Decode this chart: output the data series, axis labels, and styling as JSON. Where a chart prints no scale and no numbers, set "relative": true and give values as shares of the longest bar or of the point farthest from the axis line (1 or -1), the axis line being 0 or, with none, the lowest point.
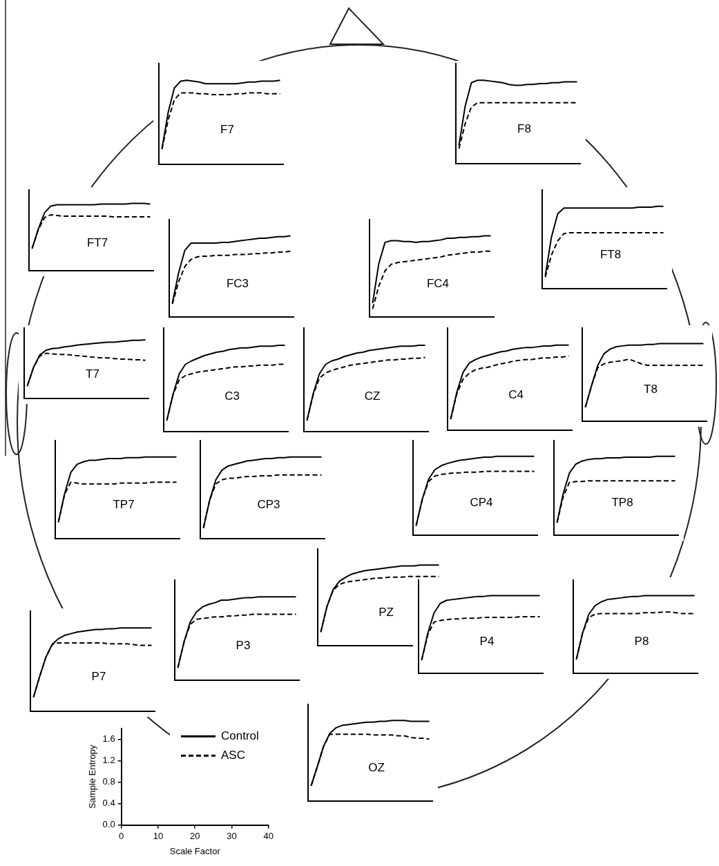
{
  "chart_data": [
    {
      "type": "line",
      "title": "F7",
      "relative": true,
      "categories": [
        null,
        null,
        null,
        null,
        null,
        null,
        null,
        null,
        null,
        null,
        null,
        null,
        null,
        null,
        null,
        null,
        null,
        null,
        null,
        null
      ],
      "series": [
        {
          "color": "#000000",
          "line_style": "solid",
          "values": [
            0.19,
            0.62,
            0.91,
            0.99,
            1.0,
            0.99,
            0.98,
            0.96,
            0.96,
            0.96,
            0.96,
            0.96,
            0.96,
            0.97,
            0.98,
            0.98,
            0.99,
            0.99,
            0.99,
            1.0
          ]
        },
        {
          "color": "#000000",
          "line_style": "dashed",
          "values": [
            0.18,
            0.53,
            0.77,
            0.85,
            0.85,
            0.85,
            0.84,
            0.84,
            0.83,
            0.83,
            0.83,
            0.83,
            0.84,
            0.84,
            0.85,
            0.85,
            0.85,
            0.84,
            0.84,
            0.84
          ]
        }
      ]
    },
    {
      "type": "line",
      "title": "F8",
      "relative": true,
      "categories": [
        null,
        null,
        null,
        null,
        null,
        null,
        null,
        null,
        null,
        null,
        null,
        null,
        null,
        null,
        null,
        null,
        null,
        null,
        null,
        null
      ],
      "series": [
        {
          "color": "#000000",
          "line_style": "solid",
          "values": [
            0.22,
            0.69,
            0.97,
            1.0,
            1.0,
            0.99,
            0.98,
            0.97,
            0.95,
            0.94,
            0.94,
            0.95,
            0.95,
            0.96,
            0.96,
            0.97,
            0.97,
            0.98,
            0.98,
            0.98
          ]
        },
        {
          "color": "#000000",
          "line_style": "dashed",
          "values": [
            0.18,
            0.48,
            0.68,
            0.73,
            0.73,
            0.73,
            0.73,
            0.73,
            0.73,
            0.73,
            0.73,
            0.73,
            0.73,
            0.73,
            0.73,
            0.73,
            0.73,
            0.73,
            0.73,
            0.73
          ]
        }
      ]
    },
    {
      "type": "line",
      "title": "FT7",
      "relative": true,
      "categories": [
        null,
        null,
        null,
        null,
        null,
        null,
        null,
        null,
        null,
        null,
        null,
        null,
        null,
        null,
        null,
        null,
        null,
        null,
        null,
        null
      ],
      "series": [
        {
          "color": "#000000",
          "line_style": "solid",
          "values": [
            0.33,
            0.62,
            0.86,
            0.96,
            0.98,
            0.98,
            0.98,
            0.98,
            0.98,
            0.98,
            0.98,
            0.99,
            0.99,
            0.99,
            0.99,
            0.99,
            1.0,
            1.0,
            1.0,
            0.99
          ]
        },
        {
          "color": "#000000",
          "line_style": "dashed",
          "values": [
            0.33,
            0.61,
            0.79,
            0.83,
            0.82,
            0.81,
            0.81,
            0.81,
            0.81,
            0.81,
            0.81,
            0.81,
            0.81,
            0.8,
            0.8,
            0.8,
            0.8,
            0.8,
            0.8,
            0.8
          ]
        }
      ]
    },
    {
      "type": "line",
      "title": "FT8",
      "relative": true,
      "categories": [
        null,
        null,
        null,
        null,
        null,
        null,
        null,
        null,
        null,
        null,
        null,
        null,
        null,
        null,
        null,
        null,
        null,
        null,
        null,
        null
      ],
      "series": [
        {
          "color": "#000000",
          "line_style": "solid",
          "values": [
            0.16,
            0.63,
            0.91,
            0.98,
            0.98,
            0.98,
            0.98,
            0.98,
            0.98,
            0.98,
            0.98,
            0.98,
            0.98,
            0.98,
            0.98,
            0.99,
            0.99,
            0.99,
            1.0,
            1.0
          ]
        },
        {
          "color": "#000000",
          "line_style": "dashed",
          "values": [
            0.14,
            0.41,
            0.58,
            0.67,
            0.68,
            0.68,
            0.68,
            0.68,
            0.68,
            0.68,
            0.68,
            0.68,
            0.68,
            0.68,
            0.68,
            0.68,
            0.68,
            0.68,
            0.68,
            0.68
          ]
        }
      ]
    },
    {
      "type": "line",
      "title": "FC3",
      "relative": true,
      "categories": [
        null,
        null,
        null,
        null,
        null,
        null,
        null,
        null,
        null,
        null,
        null,
        null,
        null,
        null,
        null,
        null,
        null,
        null,
        null,
        null
      ],
      "series": [
        {
          "color": "#000000",
          "line_style": "solid",
          "values": [
            0.17,
            0.54,
            0.82,
            0.91,
            0.91,
            0.91,
            0.91,
            0.91,
            0.92,
            0.92,
            0.93,
            0.94,
            0.95,
            0.96,
            0.97,
            0.97,
            0.98,
            0.99,
            0.99,
            1.0
          ]
        },
        {
          "color": "#000000",
          "line_style": "dashed",
          "values": [
            0.16,
            0.43,
            0.62,
            0.71,
            0.74,
            0.75,
            0.75,
            0.76,
            0.76,
            0.76,
            0.77,
            0.77,
            0.77,
            0.78,
            0.78,
            0.79,
            0.79,
            0.8,
            0.8,
            0.81
          ]
        }
      ]
    },
    {
      "type": "line",
      "title": "FC4",
      "relative": true,
      "categories": [
        null,
        null,
        null,
        null,
        null,
        null,
        null,
        null,
        null,
        null,
        null,
        null,
        null,
        null,
        null,
        null,
        null,
        null,
        null,
        null
      ],
      "series": [
        {
          "color": "#000000",
          "line_style": "solid",
          "values": [
            0.17,
            0.66,
            0.92,
            0.94,
            0.94,
            0.93,
            0.93,
            0.92,
            0.93,
            0.93,
            0.94,
            0.95,
            0.97,
            0.97,
            0.98,
            0.98,
            0.99,
            0.99,
            1.0,
            1.0
          ]
        },
        {
          "color": "#000000",
          "line_style": "dashed",
          "values": [
            0.1,
            0.38,
            0.57,
            0.65,
            0.67,
            0.68,
            0.69,
            0.7,
            0.71,
            0.72,
            0.73,
            0.74,
            0.76,
            0.77,
            0.78,
            0.79,
            0.8,
            0.8,
            0.81,
            0.81
          ]
        }
      ]
    },
    {
      "type": "line",
      "title": "T7",
      "relative": true,
      "categories": [
        null,
        null,
        null,
        null,
        null,
        null,
        null,
        null,
        null,
        null,
        null,
        null,
        null,
        null,
        null,
        null,
        null,
        null,
        null,
        null
      ],
      "series": [
        {
          "color": "#000000",
          "line_style": "solid",
          "values": [
            0.21,
            0.53,
            0.74,
            0.82,
            0.85,
            0.86,
            0.88,
            0.89,
            0.91,
            0.92,
            0.93,
            0.94,
            0.95,
            0.96,
            0.96,
            0.97,
            0.98,
            0.99,
            0.99,
            1.0
          ]
        },
        {
          "color": "#000000",
          "line_style": "dashed",
          "values": [
            0.21,
            0.53,
            0.72,
            0.77,
            0.76,
            0.75,
            0.75,
            0.74,
            0.73,
            0.72,
            0.71,
            0.7,
            0.69,
            0.69,
            0.68,
            0.67,
            0.67,
            0.66,
            0.66,
            0.65
          ]
        }
      ]
    },
    {
      "type": "line",
      "title": "C3",
      "relative": true,
      "categories": [
        null,
        null,
        null,
        null,
        null,
        null,
        null,
        null,
        null,
        null,
        null,
        null,
        null,
        null,
        null,
        null,
        null,
        null,
        null,
        null
      ],
      "series": [
        {
          "color": "#000000",
          "line_style": "solid",
          "values": [
            0.13,
            0.43,
            0.67,
            0.78,
            0.82,
            0.85,
            0.88,
            0.9,
            0.92,
            0.93,
            0.95,
            0.96,
            0.97,
            0.97,
            0.98,
            0.99,
            0.99,
            0.99,
            1.0,
            1.0
          ]
        },
        {
          "color": "#000000",
          "line_style": "dashed",
          "values": [
            0.13,
            0.43,
            0.6,
            0.65,
            0.67,
            0.69,
            0.7,
            0.71,
            0.72,
            0.73,
            0.74,
            0.75,
            0.75,
            0.76,
            0.76,
            0.77,
            0.77,
            0.77,
            0.78,
            0.78
          ]
        }
      ]
    },
    {
      "type": "line",
      "title": "CZ",
      "relative": true,
      "categories": [
        null,
        null,
        null,
        null,
        null,
        null,
        null,
        null,
        null,
        null,
        null,
        null,
        null,
        null,
        null,
        null,
        null,
        null,
        null,
        null
      ],
      "series": [
        {
          "color": "#000000",
          "line_style": "solid",
          "values": [
            0.13,
            0.44,
            0.67,
            0.78,
            0.82,
            0.84,
            0.87,
            0.89,
            0.91,
            0.92,
            0.94,
            0.95,
            0.96,
            0.97,
            0.98,
            0.99,
            0.99,
            0.99,
            1.0,
            1.0
          ]
        },
        {
          "color": "#000000",
          "line_style": "dashed",
          "values": [
            0.13,
            0.43,
            0.62,
            0.68,
            0.71,
            0.73,
            0.75,
            0.77,
            0.78,
            0.79,
            0.8,
            0.81,
            0.82,
            0.83,
            0.83,
            0.84,
            0.84,
            0.85,
            0.85,
            0.86
          ]
        }
      ]
    },
    {
      "type": "line",
      "title": "C4",
      "relative": true,
      "categories": [
        null,
        null,
        null,
        null,
        null,
        null,
        null,
        null,
        null,
        null,
        null,
        null,
        null,
        null,
        null,
        null,
        null,
        null,
        null,
        null
      ],
      "series": [
        {
          "color": "#000000",
          "line_style": "solid",
          "values": [
            0.13,
            0.45,
            0.68,
            0.79,
            0.83,
            0.86,
            0.88,
            0.9,
            0.92,
            0.93,
            0.95,
            0.96,
            0.97,
            0.97,
            0.98,
            0.99,
            0.99,
            1.0,
            1.0,
            1.0
          ]
        },
        {
          "color": "#000000",
          "line_style": "dashed",
          "values": [
            0.13,
            0.43,
            0.6,
            0.67,
            0.71,
            0.73,
            0.74,
            0.76,
            0.78,
            0.79,
            0.81,
            0.82,
            0.83,
            0.83,
            0.84,
            0.85,
            0.85,
            0.86,
            0.86,
            0.87
          ]
        }
      ]
    },
    {
      "type": "line",
      "title": "T8",
      "relative": true,
      "categories": [
        null,
        null,
        null,
        null,
        null,
        null,
        null,
        null,
        null,
        null,
        null,
        null,
        null,
        null,
        null,
        null,
        null,
        null,
        null,
        null
      ],
      "series": [
        {
          "color": "#000000",
          "line_style": "solid",
          "values": [
            0.18,
            0.46,
            0.72,
            0.87,
            0.93,
            0.96,
            0.97,
            0.98,
            0.98,
            0.98,
            0.99,
            0.99,
            1.0,
            1.0,
            1.0,
            1.0,
            1.0,
            1.0,
            1.0,
            1.0
          ]
        },
        {
          "color": "#000000",
          "line_style": "dashed",
          "values": [
            0.18,
            0.46,
            0.69,
            0.74,
            0.76,
            0.77,
            0.78,
            0.8,
            0.77,
            0.74,
            0.72,
            0.72,
            0.72,
            0.72,
            0.72,
            0.72,
            0.72,
            0.72,
            0.72,
            0.72
          ]
        }
      ]
    },
    {
      "type": "line",
      "title": "TP7",
      "relative": true,
      "categories": [
        null,
        null,
        null,
        null,
        null,
        null,
        null,
        null,
        null,
        null,
        null,
        null,
        null,
        null,
        null,
        null,
        null,
        null,
        null,
        null
      ],
      "series": [
        {
          "color": "#000000",
          "line_style": "solid",
          "values": [
            0.2,
            0.55,
            0.81,
            0.91,
            0.94,
            0.96,
            0.96,
            0.97,
            0.98,
            0.98,
            0.98,
            0.99,
            0.99,
            0.99,
            1.0,
            1.0,
            1.0,
            1.0,
            1.0,
            1.0
          ]
        },
        {
          "color": "#000000",
          "line_style": "dashed",
          "values": [
            0.2,
            0.54,
            0.69,
            0.68,
            0.67,
            0.67,
            0.67,
            0.67,
            0.67,
            0.67,
            0.68,
            0.68,
            0.68,
            0.68,
            0.68,
            0.69,
            0.69,
            0.69,
            0.69,
            0.69
          ]
        }
      ]
    },
    {
      "type": "line",
      "title": "CP3",
      "relative": true,
      "categories": [
        null,
        null,
        null,
        null,
        null,
        null,
        null,
        null,
        null,
        null,
        null,
        null,
        null,
        null,
        null,
        null,
        null,
        null,
        null,
        null
      ],
      "series": [
        {
          "color": "#000000",
          "line_style": "solid",
          "values": [
            0.13,
            0.47,
            0.72,
            0.84,
            0.89,
            0.91,
            0.93,
            0.95,
            0.96,
            0.97,
            0.98,
            0.98,
            0.99,
            0.99,
            1.0,
            1.0,
            1.0,
            1.0,
            1.0,
            1.0
          ]
        },
        {
          "color": "#000000",
          "line_style": "dashed",
          "values": [
            0.13,
            0.47,
            0.67,
            0.72,
            0.74,
            0.74,
            0.75,
            0.76,
            0.76,
            0.77,
            0.77,
            0.77,
            0.78,
            0.78,
            0.78,
            0.78,
            0.78,
            0.78,
            0.78,
            0.78
          ]
        }
      ]
    },
    {
      "type": "line",
      "title": "CP4",
      "relative": true,
      "categories": [
        null,
        null,
        null,
        null,
        null,
        null,
        null,
        null,
        null,
        null,
        null,
        null,
        null,
        null,
        null,
        null,
        null,
        null,
        null,
        null
      ],
      "series": [
        {
          "color": "#000000",
          "line_style": "solid",
          "values": [
            0.12,
            0.46,
            0.71,
            0.83,
            0.88,
            0.91,
            0.93,
            0.95,
            0.96,
            0.97,
            0.98,
            0.99,
            0.99,
            1.0,
            1.0,
            1.0,
            1.0,
            1.0,
            1.0,
            1.0
          ]
        },
        {
          "color": "#000000",
          "line_style": "dashed",
          "values": [
            0.12,
            0.46,
            0.68,
            0.75,
            0.77,
            0.78,
            0.79,
            0.79,
            0.8,
            0.8,
            0.8,
            0.81,
            0.81,
            0.81,
            0.81,
            0.81,
            0.81,
            0.81,
            0.81,
            0.81
          ]
        }
      ]
    },
    {
      "type": "line",
      "title": "TP8",
      "relative": true,
      "categories": [
        null,
        null,
        null,
        null,
        null,
        null,
        null,
        null,
        null,
        null,
        null,
        null,
        null,
        null,
        null,
        null,
        null,
        null,
        null,
        null
      ],
      "series": [
        {
          "color": "#000000",
          "line_style": "solid",
          "values": [
            0.16,
            0.53,
            0.79,
            0.9,
            0.94,
            0.96,
            0.97,
            0.97,
            0.98,
            0.98,
            0.98,
            0.99,
            0.99,
            0.99,
            0.99,
            0.99,
            1.0,
            1.0,
            1.0,
            1.0
          ]
        },
        {
          "color": "#000000",
          "line_style": "dashed",
          "values": [
            0.16,
            0.49,
            0.67,
            0.68,
            0.68,
            0.69,
            0.69,
            0.69,
            0.69,
            0.69,
            0.69,
            0.69,
            0.69,
            0.69,
            0.69,
            0.69,
            0.69,
            0.69,
            0.69,
            0.69
          ]
        }
      ]
    },
    {
      "type": "line",
      "title": "PZ",
      "relative": true,
      "categories": [
        null,
        null,
        null,
        null,
        null,
        null,
        null,
        null,
        null,
        null,
        null,
        null,
        null,
        null,
        null,
        null,
        null,
        null,
        null,
        null
      ],
      "series": [
        {
          "color": "#000000",
          "line_style": "solid",
          "values": [
            0.17,
            0.49,
            0.7,
            0.8,
            0.85,
            0.89,
            0.91,
            0.93,
            0.94,
            0.95,
            0.96,
            0.97,
            0.98,
            0.99,
            0.99,
            0.99,
            1.0,
            1.0,
            1.0,
            1.0
          ]
        },
        {
          "color": "#000000",
          "line_style": "dashed",
          "values": [
            0.17,
            0.49,
            0.69,
            0.76,
            0.79,
            0.8,
            0.81,
            0.82,
            0.83,
            0.84,
            0.84,
            0.85,
            0.85,
            0.85,
            0.86,
            0.86,
            0.86,
            0.86,
            0.86,
            0.86
          ]
        }
      ]
    },
    {
      "type": "line",
      "title": "P3",
      "relative": true,
      "categories": [
        null,
        null,
        null,
        null,
        null,
        null,
        null,
        null,
        null,
        null,
        null,
        null,
        null,
        null,
        null,
        null,
        null,
        null,
        null,
        null
      ],
      "series": [
        {
          "color": "#000000",
          "line_style": "solid",
          "values": [
            0.15,
            0.46,
            0.7,
            0.82,
            0.88,
            0.91,
            0.93,
            0.96,
            0.96,
            0.97,
            0.98,
            0.99,
            0.99,
            1.0,
            1.0,
            1.0,
            1.0,
            1.0,
            1.0,
            1.0
          ]
        },
        {
          "color": "#000000",
          "line_style": "dashed",
          "values": [
            0.15,
            0.46,
            0.67,
            0.73,
            0.74,
            0.75,
            0.76,
            0.76,
            0.77,
            0.77,
            0.78,
            0.78,
            0.79,
            0.79,
            0.79,
            0.79,
            0.79,
            0.79,
            0.79,
            0.79
          ]
        }
      ]
    },
    {
      "type": "line",
      "title": "P4",
      "relative": true,
      "categories": [
        null,
        null,
        null,
        null,
        null,
        null,
        null,
        null,
        null,
        null,
        null,
        null,
        null,
        null,
        null,
        null,
        null,
        null,
        null,
        null
      ],
      "series": [
        {
          "color": "#000000",
          "line_style": "solid",
          "values": [
            0.17,
            0.52,
            0.78,
            0.9,
            0.94,
            0.95,
            0.96,
            0.97,
            0.98,
            0.99,
            0.99,
            1.0,
            1.0,
            1.0,
            1.0,
            1.0,
            1.0,
            1.0,
            1.0,
            1.0
          ]
        },
        {
          "color": "#000000",
          "line_style": "dashed",
          "values": [
            0.17,
            0.5,
            0.66,
            0.68,
            0.69,
            0.7,
            0.7,
            0.71,
            0.71,
            0.71,
            0.72,
            0.72,
            0.72,
            0.72,
            0.72,
            0.72,
            0.73,
            0.73,
            0.73,
            0.73
          ]
        }
      ]
    },
    {
      "type": "line",
      "title": "P8",
      "relative": true,
      "categories": [
        null,
        null,
        null,
        null,
        null,
        null,
        null,
        null,
        null,
        null,
        null,
        null,
        null,
        null,
        null,
        null,
        null,
        null,
        null,
        null
      ],
      "series": [
        {
          "color": "#000000",
          "line_style": "solid",
          "values": [
            0.18,
            0.52,
            0.76,
            0.87,
            0.92,
            0.95,
            0.96,
            0.97,
            0.98,
            0.99,
            0.99,
            1.0,
            1.0,
            1.0,
            1.0,
            1.0,
            1.0,
            1.0,
            1.0,
            1.0
          ]
        },
        {
          "color": "#000000",
          "line_style": "dashed",
          "values": [
            0.18,
            0.52,
            0.72,
            0.76,
            0.77,
            0.77,
            0.77,
            0.77,
            0.77,
            0.77,
            0.77,
            0.78,
            0.78,
            0.78,
            0.79,
            0.79,
            0.78,
            0.77,
            0.77,
            0.77
          ]
        }
      ]
    },
    {
      "type": "line",
      "title": "P7",
      "relative": true,
      "categories": [
        null,
        null,
        null,
        null,
        null,
        null,
        null,
        null,
        null,
        null,
        null,
        null,
        null,
        null,
        null,
        null,
        null,
        null,
        null,
        null
      ],
      "series": [
        {
          "color": "#000000",
          "line_style": "solid",
          "values": [
            0.17,
            0.42,
            0.65,
            0.8,
            0.87,
            0.91,
            0.93,
            0.95,
            0.96,
            0.97,
            0.98,
            0.98,
            0.99,
            0.99,
            1.0,
            1.0,
            1.0,
            1.0,
            1.0,
            1.0
          ]
        },
        {
          "color": "#000000",
          "line_style": "dashed",
          "values": [
            0.17,
            0.42,
            0.65,
            0.8,
            0.82,
            0.82,
            0.82,
            0.82,
            0.82,
            0.82,
            0.82,
            0.82,
            0.81,
            0.81,
            0.81,
            0.81,
            0.8,
            0.79,
            0.79,
            0.79
          ]
        }
      ]
    },
    {
      "type": "line",
      "title": "OZ",
      "relative": true,
      "legend": "left",
      "categories": [
        null,
        null,
        null,
        null,
        null,
        null,
        null,
        null,
        null,
        null,
        null,
        null,
        null,
        null,
        null,
        null,
        null,
        null,
        null,
        null
      ],
      "series": [
        {
          "name": "Control",
          "color": "#000000",
          "line_style": "solid",
          "values": [
            0.19,
            0.43,
            0.68,
            0.84,
            0.91,
            0.94,
            0.95,
            0.96,
            0.97,
            0.98,
            0.98,
            0.99,
            0.99,
            1.0,
            1.0,
            1.0,
            0.99,
            0.99,
            0.99,
            0.99
          ]
        },
        {
          "name": "ASC",
          "color": "#000000",
          "line_style": "dashed",
          "values": [
            0.19,
            0.43,
            0.68,
            0.83,
            0.83,
            0.83,
            0.83,
            0.83,
            0.83,
            0.83,
            0.82,
            0.82,
            0.82,
            0.82,
            0.81,
            0.81,
            0.79,
            0.78,
            0.78,
            0.77
          ]
        }
      ]
    },
    {
      "type": "line",
      "xlabel": "Scale Factor",
      "ylabel": "Sample Entropy",
      "xlim": [
        0,
        40
      ],
      "ylim": [
        0,
        1.8
      ],
      "xticks": [
        0,
        10,
        20,
        30,
        40
      ],
      "yticks": [
        {
          "value": 0,
          "label": "0.0"
        },
        0.4,
        0.8,
        1.2,
        1.6
      ]
    }
  ]
}
